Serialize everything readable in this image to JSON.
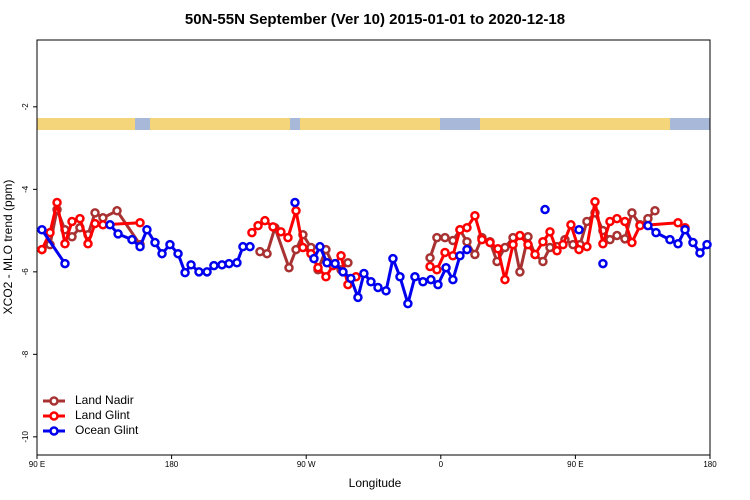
{
  "chart_data": {
    "type": "line",
    "title": "50N-55N September (Ver 10)   2015-01-01 to 2020-12-18",
    "x_label": "Longitude",
    "y_label": "XCO2 - MLO trend (ppm)",
    "xlim": [
      90,
      540
    ],
    "xticks": [
      {
        "value": 90,
        "label": "90 E"
      },
      180,
      {
        "value": 270,
        "label": "90 W"
      },
      {
        "value": 360,
        "label": "0"
      },
      {
        "value": 450,
        "label": "90 E"
      },
      {
        "value": 540,
        "label": "180"
      }
    ],
    "ylim": [
      -10.44,
      -0.38
    ],
    "yticks": [
      -2,
      -4,
      -6,
      -8,
      -10
    ],
    "legend": "lower left",
    "series": [
      {
        "name": "Land Nadir",
        "color": "#a83232",
        "x": [
          93.3,
          98.7,
          103.4,
          108.7,
          113.4,
          118.7,
          124.1,
          128.8,
          134.1,
          143.5,
          158.9,
          null,
          239.1,
          243.8,
          249.1,
          258.5,
          263.2,
          267.8,
          273.2,
          277.9,
          283.2,
          287.9,
          293.3,
          297.9,
          null,
          352.8,
          357.4,
          362.8,
          368.1,
          372.8,
          377.5,
          382.8,
          387.5,
          392.9,
          397.6,
          402.9,
          408.3,
          412.9,
          418.3,
          423,
          428.3,
          433,
          437.7,
          443,
          448.4,
          453.1,
          457.7,
          463.1,
          468.4,
          473.1,
          477.8,
          483.1,
          487.8,
          493.2,
          498.5,
          503.2
        ],
        "values": [
          -5.46,
          -5.34,
          -4.49,
          -4.98,
          -5.15,
          -4.93,
          -5.1,
          -4.57,
          -4.69,
          -4.52,
          -5.34,
          null,
          -5.51,
          -5.56,
          -4.93,
          -5.9,
          -5.46,
          -5.1,
          -5.41,
          -5.95,
          -5.46,
          -5.83,
          -5.95,
          -5.78,
          null,
          -5.66,
          -5.17,
          -5.17,
          -5.24,
          -4.98,
          -5.27,
          -5.58,
          -5.17,
          -5.27,
          -5.75,
          -5.41,
          -5.17,
          -6.0,
          -5.15,
          -5.58,
          -5.75,
          -5.41,
          -5.39,
          -5.22,
          -5.34,
          -5.34,
          -4.78,
          -4.57,
          -5.0,
          -5.22,
          -5.12,
          -5.2,
          -4.57,
          -4.86,
          -4.71,
          -4.52
        ]
      },
      {
        "name": "Land Glint",
        "color": "#ff0000",
        "x": [
          93.3,
          98.7,
          103.4,
          108.7,
          113.4,
          118.7,
          124.1,
          128.8,
          134.1,
          158.9,
          null,
          233.7,
          237.8,
          242.4,
          247.8,
          253.1,
          257.8,
          263.2,
          267.8,
          273.2,
          277.9,
          283.2,
          287.9,
          293.3,
          297.9,
          303.3,
          null,
          352.8,
          357.4,
          362.8,
          368.1,
          372.8,
          377.5,
          382.8,
          387.5,
          392.9,
          398.2,
          402.9,
          408.3,
          412.9,
          418.3,
          423,
          428.3,
          433,
          437.7,
          441.7,
          447,
          452.4,
          457.7,
          463.1,
          468.4,
          473.1,
          477.8,
          483.1,
          487.8,
          493.2,
          518.6,
          523.3
        ],
        "values": [
          -5.46,
          -5.05,
          -4.32,
          -5.32,
          -4.78,
          -4.71,
          -5.32,
          -4.83,
          -4.86,
          -4.81,
          null,
          -5.05,
          -4.88,
          -4.76,
          -4.91,
          -5.03,
          -5.17,
          -4.52,
          -5.41,
          -5.56,
          -5.9,
          -6.12,
          -5.85,
          -5.61,
          -6.31,
          -6.12,
          null,
          -5.87,
          -5.95,
          -5.53,
          -5.61,
          -4.98,
          -4.93,
          -4.64,
          -5.22,
          -5.29,
          -5.44,
          -6.19,
          -5.34,
          -5.12,
          -5.34,
          -5.58,
          -5.27,
          -5.03,
          -5.49,
          -5.34,
          -4.86,
          -5.46,
          -5.39,
          -4.3,
          -5.32,
          -4.78,
          -4.71,
          -4.78,
          -5.29,
          -4.88,
          -4.81,
          -4.93
        ]
      },
      {
        "name": "Ocean Glint",
        "color": "#0000ee",
        "x": [
          93.3,
          108.7,
          null,
          138.8,
          144.2,
          153.5,
          158.9,
          163.5,
          168.9,
          173.6,
          178.9,
          184.3,
          189,
          193,
          198.3,
          203.7,
          208.3,
          213.7,
          218.4,
          223.7,
          227.7,
          232.4,
          null,
          262.5,
          null,
          275.2,
          279.2,
          283.9,
          289.3,
          294.6,
          299.9,
          304.6,
          308.6,
          313.3,
          318,
          323.4,
          328,
          332.7,
          338,
          342.7,
          348.1,
          353.4,
          358.1,
          363.5,
          368.1,
          372.8,
          377.5,
          null,
          429.7,
          null,
          452.4,
          null,
          468.4,
          null,
          498.5,
          503.9,
          513.2,
          518.6,
          523.3,
          528.6,
          533.3,
          538
        ],
        "values": [
          -4.98,
          -5.8,
          null,
          -4.86,
          -5.08,
          -5.22,
          -5.39,
          -4.98,
          -5.29,
          -5.56,
          -5.34,
          -5.56,
          -6.02,
          -5.83,
          -6.0,
          -6.0,
          -5.85,
          -5.83,
          -5.8,
          -5.78,
          -5.39,
          -5.39,
          null,
          -4.32,
          null,
          -5.68,
          -5.39,
          -5.78,
          -5.8,
          -6.0,
          -6.16,
          -6.62,
          -6.04,
          -6.24,
          -6.38,
          -6.46,
          -5.68,
          -6.12,
          -6.77,
          -6.12,
          -6.24,
          -6.19,
          -6.31,
          -5.9,
          -6.19,
          -5.61,
          -5.46,
          null,
          -4.49,
          null,
          -4.98,
          null,
          -5.8,
          null,
          -4.88,
          -5.05,
          -5.22,
          -5.32,
          -4.98,
          -5.29,
          -5.54,
          -5.34
        ]
      }
    ]
  }
}
